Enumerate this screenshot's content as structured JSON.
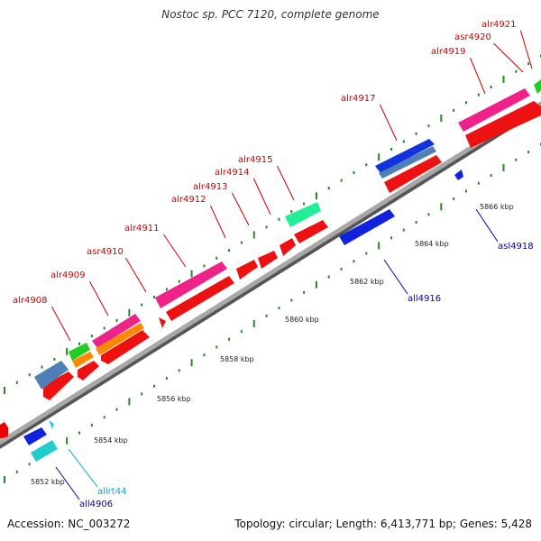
{
  "title": "Nostoc sp. PCC 7120, complete genome",
  "footer": {
    "accession": "Accession: NC_003272",
    "summary": "Topology: circular; Length: 6,413,771 bp; Genes: 5,428"
  },
  "colors": {
    "forward_label": "#cc0000",
    "reverse_label": "#0000aa",
    "rna_label": "#00aacc",
    "backbone": "#9a9a9a",
    "tick": "#228822"
  },
  "scale_labels": [
    "5852 kbp",
    "5854 kbp",
    "5856 kbp",
    "5858 kbp",
    "5860 kbp",
    "5862 kbp",
    "5864 kbp",
    "5866 kbp"
  ],
  "genes": [
    {
      "name": "alr4908",
      "strand": "forward"
    },
    {
      "name": "alr4909",
      "strand": "forward"
    },
    {
      "name": "asr4910",
      "strand": "forward"
    },
    {
      "name": "alr4911",
      "strand": "forward"
    },
    {
      "name": "alr4912",
      "strand": "forward"
    },
    {
      "name": "alr4913",
      "strand": "forward"
    },
    {
      "name": "alr4914",
      "strand": "forward"
    },
    {
      "name": "alr4915",
      "strand": "forward"
    },
    {
      "name": "alr4917",
      "strand": "forward"
    },
    {
      "name": "alr4919",
      "strand": "forward"
    },
    {
      "name": "asr4920",
      "strand": "forward"
    },
    {
      "name": "alr4921",
      "strand": "forward"
    },
    {
      "name": "all4906",
      "strand": "reverse"
    },
    {
      "name": "allrt44",
      "strand": "reverse"
    },
    {
      "name": "all4916",
      "strand": "reverse"
    },
    {
      "name": "asl4918",
      "strand": "reverse"
    }
  ]
}
